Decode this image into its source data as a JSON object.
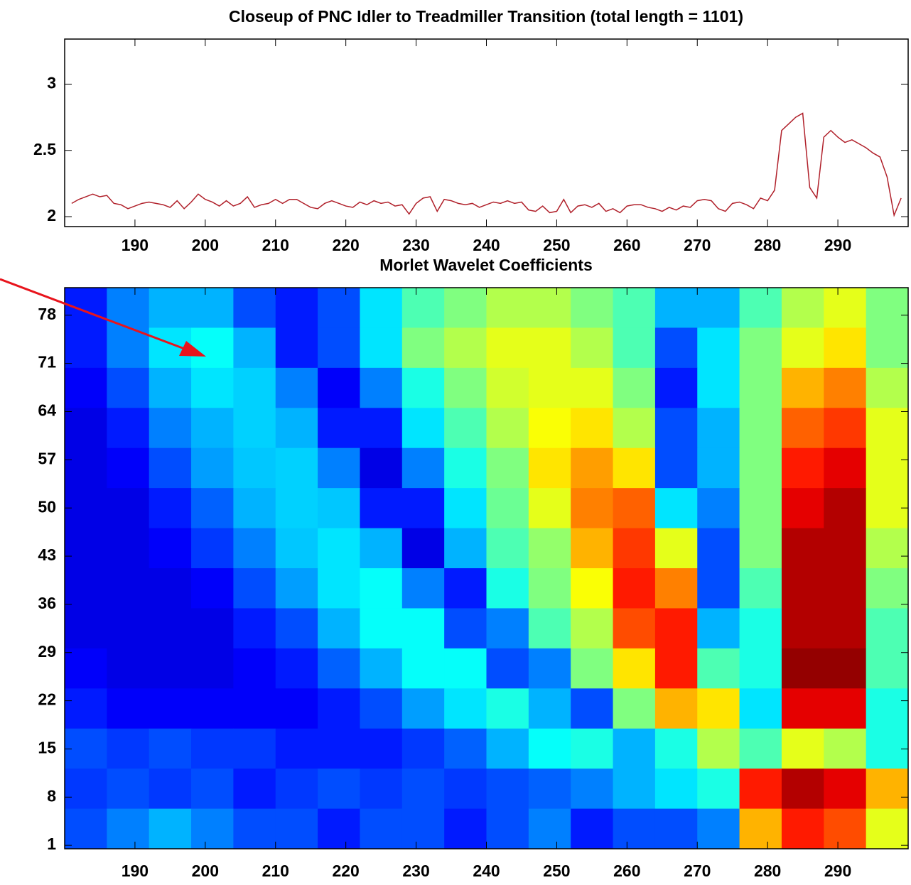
{
  "chart_data": [
    {
      "type": "line",
      "title": "Closeup of PNC Idler to Treadmiller Transition  (total length = 1101)",
      "x": [
        181,
        182,
        183,
        184,
        185,
        186,
        187,
        188,
        189,
        190,
        191,
        192,
        193,
        194,
        195,
        196,
        197,
        198,
        199,
        200,
        201,
        202,
        203,
        204,
        205,
        206,
        207,
        208,
        209,
        210,
        211,
        212,
        213,
        214,
        215,
        216,
        217,
        218,
        219,
        220,
        221,
        222,
        223,
        224,
        225,
        226,
        227,
        228,
        229,
        230,
        231,
        232,
        233,
        234,
        235,
        236,
        237,
        238,
        239,
        240,
        241,
        242,
        243,
        244,
        245,
        246,
        247,
        248,
        249,
        250,
        251,
        252,
        253,
        254,
        255,
        256,
        257,
        258,
        259,
        260,
        261,
        262,
        263,
        264,
        265,
        266,
        267,
        268,
        269,
        270,
        271,
        272,
        273,
        274,
        275,
        276,
        277,
        278,
        279,
        280,
        281,
        282,
        283,
        284,
        285,
        286,
        287,
        288,
        289,
        290,
        291,
        292,
        293,
        294,
        295,
        296,
        297,
        298,
        299
      ],
      "series": [
        {
          "color": "#b0202a",
          "values": [
            2.1,
            2.13,
            2.15,
            2.17,
            2.15,
            2.16,
            2.1,
            2.09,
            2.06,
            2.08,
            2.1,
            2.11,
            2.1,
            2.09,
            2.07,
            2.12,
            2.06,
            2.11,
            2.17,
            2.13,
            2.11,
            2.08,
            2.12,
            2.08,
            2.1,
            2.15,
            2.07,
            2.09,
            2.1,
            2.13,
            2.1,
            2.13,
            2.13,
            2.1,
            2.07,
            2.06,
            2.1,
            2.12,
            2.1,
            2.08,
            2.07,
            2.11,
            2.09,
            2.12,
            2.1,
            2.11,
            2.08,
            2.09,
            2.02,
            2.1,
            2.14,
            2.15,
            2.04,
            2.13,
            2.12,
            2.1,
            2.09,
            2.1,
            2.07,
            2.09,
            2.11,
            2.1,
            2.12,
            2.1,
            2.11,
            2.05,
            2.04,
            2.08,
            2.03,
            2.04,
            2.13,
            2.03,
            2.08,
            2.09,
            2.07,
            2.1,
            2.04,
            2.06,
            2.03,
            2.08,
            2.09,
            2.09,
            2.07,
            2.06,
            2.04,
            2.07,
            2.05,
            2.08,
            2.07,
            2.12,
            2.13,
            2.12,
            2.06,
            2.04,
            2.1,
            2.11,
            2.09,
            2.06,
            2.14,
            2.12,
            2.2,
            2.65,
            2.7,
            2.75,
            2.78,
            2.22,
            2.14,
            2.6,
            2.65,
            2.6,
            2.56,
            2.58,
            2.55,
            2.52,
            2.48,
            2.45,
            2.3,
            2.01,
            2.14
          ]
        }
      ],
      "xlim": [
        180,
        300
      ],
      "ylim": [
        1.925,
        3.34
      ],
      "xticks": [
        190,
        200,
        210,
        220,
        230,
        240,
        250,
        260,
        270,
        280,
        290
      ],
      "yticks": [
        2,
        2.5,
        3
      ]
    },
    {
      "type": "heatmap",
      "title": "Morlet Wavelet Coefficients",
      "colormap": "jet",
      "xlim": [
        180,
        300
      ],
      "ylim": [
        0.5,
        82
      ],
      "xticks": [
        190,
        200,
        210,
        220,
        230,
        240,
        250,
        260,
        270,
        280,
        290
      ],
      "yticks": [
        1,
        8,
        15,
        22,
        29,
        36,
        43,
        50,
        57,
        64,
        71,
        78
      ],
      "z": [
        [
          0.15,
          0.25,
          0.3,
          0.3,
          0.2,
          0.15,
          0.2,
          0.35,
          0.45,
          0.5,
          0.55,
          0.55,
          0.5,
          0.45,
          0.3,
          0.3,
          0.45,
          0.55,
          0.6,
          0.5
        ],
        [
          0.15,
          0.25,
          0.35,
          0.38,
          0.3,
          0.15,
          0.2,
          0.35,
          0.5,
          0.55,
          0.6,
          0.6,
          0.55,
          0.45,
          0.2,
          0.35,
          0.5,
          0.6,
          0.65,
          0.5
        ],
        [
          0.12,
          0.2,
          0.3,
          0.35,
          0.33,
          0.25,
          0.12,
          0.25,
          0.4,
          0.5,
          0.58,
          0.6,
          0.6,
          0.5,
          0.15,
          0.35,
          0.5,
          0.7,
          0.75,
          0.55
        ],
        [
          0.1,
          0.15,
          0.25,
          0.3,
          0.33,
          0.3,
          0.15,
          0.15,
          0.35,
          0.45,
          0.55,
          0.62,
          0.65,
          0.55,
          0.2,
          0.3,
          0.5,
          0.78,
          0.82,
          0.6
        ],
        [
          0.1,
          0.12,
          0.2,
          0.28,
          0.32,
          0.33,
          0.25,
          0.1,
          0.25,
          0.4,
          0.5,
          0.65,
          0.72,
          0.65,
          0.2,
          0.3,
          0.5,
          0.85,
          0.9,
          0.6
        ],
        [
          0.1,
          0.1,
          0.15,
          0.22,
          0.3,
          0.33,
          0.32,
          0.15,
          0.15,
          0.35,
          0.48,
          0.6,
          0.75,
          0.78,
          0.35,
          0.25,
          0.5,
          0.9,
          0.95,
          0.6
        ],
        [
          0.1,
          0.1,
          0.12,
          0.18,
          0.25,
          0.32,
          0.35,
          0.3,
          0.1,
          0.3,
          0.45,
          0.52,
          0.7,
          0.82,
          0.6,
          0.2,
          0.5,
          0.95,
          0.95,
          0.55
        ],
        [
          0.1,
          0.1,
          0.1,
          0.12,
          0.2,
          0.28,
          0.35,
          0.38,
          0.25,
          0.15,
          0.4,
          0.5,
          0.62,
          0.85,
          0.75,
          0.2,
          0.45,
          0.95,
          0.95,
          0.5
        ],
        [
          0.1,
          0.1,
          0.1,
          0.1,
          0.15,
          0.2,
          0.3,
          0.38,
          0.38,
          0.2,
          0.25,
          0.45,
          0.55,
          0.8,
          0.85,
          0.3,
          0.4,
          0.95,
          0.95,
          0.45
        ],
        [
          0.12,
          0.1,
          0.1,
          0.1,
          0.12,
          0.15,
          0.22,
          0.3,
          0.38,
          0.38,
          0.2,
          0.25,
          0.5,
          0.65,
          0.85,
          0.45,
          0.4,
          0.98,
          0.98,
          0.45
        ],
        [
          0.15,
          0.12,
          0.12,
          0.12,
          0.12,
          0.12,
          0.15,
          0.2,
          0.28,
          0.35,
          0.4,
          0.3,
          0.2,
          0.5,
          0.7,
          0.65,
          0.35,
          0.9,
          0.9,
          0.4
        ],
        [
          0.2,
          0.18,
          0.2,
          0.18,
          0.18,
          0.15,
          0.15,
          0.15,
          0.18,
          0.22,
          0.3,
          0.38,
          0.4,
          0.3,
          0.4,
          0.55,
          0.45,
          0.6,
          0.55,
          0.4
        ],
        [
          0.18,
          0.2,
          0.18,
          0.2,
          0.15,
          0.18,
          0.2,
          0.18,
          0.2,
          0.18,
          0.2,
          0.22,
          0.25,
          0.3,
          0.35,
          0.4,
          0.85,
          0.95,
          0.9,
          0.7
        ],
        [
          0.2,
          0.25,
          0.3,
          0.25,
          0.2,
          0.2,
          0.15,
          0.2,
          0.2,
          0.15,
          0.2,
          0.25,
          0.15,
          0.2,
          0.2,
          0.25,
          0.7,
          0.85,
          0.8,
          0.6
        ]
      ]
    }
  ]
}
